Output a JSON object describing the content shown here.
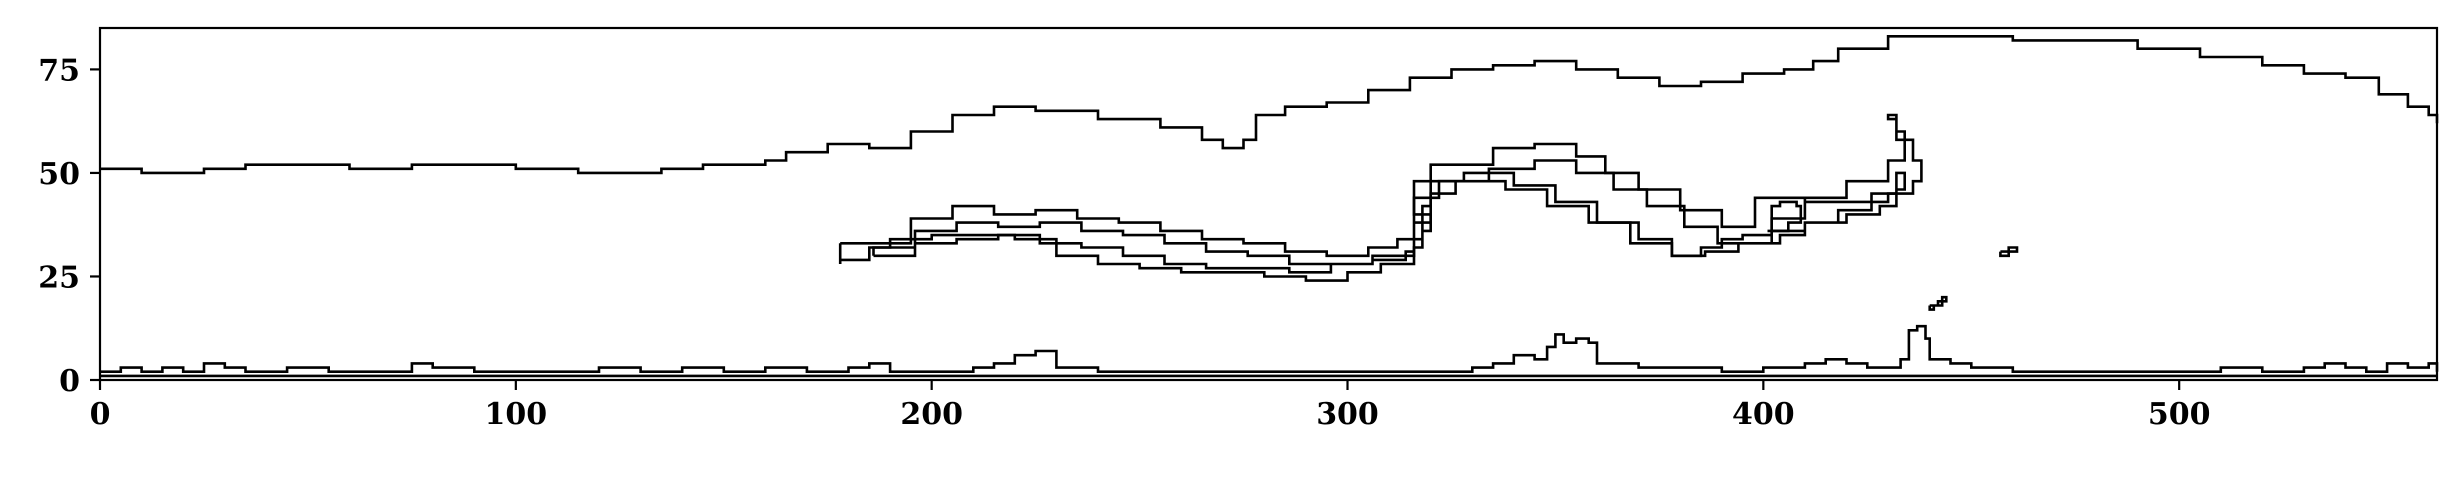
{
  "chart_data": {
    "type": "contour",
    "title": "",
    "xlabel": "",
    "ylabel": "",
    "xlim": [
      0,
      562
    ],
    "ylim": [
      0,
      85
    ],
    "x_ticks": [
      0,
      100,
      200,
      300,
      400,
      500
    ],
    "y_ticks": [
      0,
      25,
      50,
      75
    ],
    "x_tick_labels": [
      "0",
      "100",
      "200",
      "300",
      "400",
      "500"
    ],
    "y_tick_labels": [
      "0",
      "25",
      "50",
      "75"
    ],
    "grid": false,
    "line_color": "#000000",
    "contours": [
      {
        "closed": false,
        "points": [
          [
            0,
            51
          ],
          [
            10,
            50
          ],
          [
            25,
            51
          ],
          [
            35,
            52
          ],
          [
            45,
            52
          ],
          [
            60,
            51
          ],
          [
            75,
            52
          ],
          [
            90,
            52
          ],
          [
            100,
            51
          ],
          [
            115,
            50
          ],
          [
            125,
            50
          ],
          [
            135,
            51
          ],
          [
            145,
            52
          ],
          [
            155,
            52
          ],
          [
            160,
            53
          ],
          [
            165,
            55
          ],
          [
            175,
            57
          ],
          [
            185,
            56
          ],
          [
            195,
            60
          ],
          [
            205,
            64
          ],
          [
            215,
            66
          ],
          [
            225,
            65
          ],
          [
            240,
            63
          ],
          [
            255,
            61
          ],
          [
            265,
            58
          ],
          [
            270,
            56
          ],
          [
            275,
            58
          ],
          [
            278,
            64
          ],
          [
            285,
            66
          ],
          [
            295,
            67
          ],
          [
            305,
            70
          ],
          [
            315,
            73
          ],
          [
            325,
            75
          ],
          [
            335,
            76
          ],
          [
            345,
            77
          ],
          [
            355,
            75
          ],
          [
            365,
            73
          ],
          [
            375,
            71
          ],
          [
            385,
            72
          ],
          [
            395,
            74
          ],
          [
            405,
            75
          ],
          [
            412,
            77
          ],
          [
            418,
            80
          ],
          [
            430,
            83
          ],
          [
            445,
            83
          ],
          [
            460,
            82
          ],
          [
            475,
            82
          ],
          [
            490,
            80
          ],
          [
            505,
            78
          ],
          [
            520,
            76
          ],
          [
            530,
            74
          ],
          [
            540,
            73
          ],
          [
            548,
            69
          ],
          [
            555,
            66
          ],
          [
            560,
            64
          ],
          [
            562,
            62
          ]
        ]
      },
      {
        "closed": true,
        "points": [
          [
            178,
            33
          ],
          [
            188,
            33
          ],
          [
            195,
            39
          ],
          [
            205,
            42
          ],
          [
            215,
            40
          ],
          [
            225,
            41
          ],
          [
            235,
            39
          ],
          [
            245,
            38
          ],
          [
            255,
            36
          ],
          [
            265,
            34
          ],
          [
            275,
            33
          ],
          [
            285,
            31
          ],
          [
            295,
            30
          ],
          [
            305,
            32
          ],
          [
            312,
            34
          ],
          [
            318,
            36
          ],
          [
            320,
            40
          ],
          [
            316,
            48
          ],
          [
            320,
            52
          ],
          [
            335,
            56
          ],
          [
            345,
            57
          ],
          [
            355,
            54
          ],
          [
            362,
            50
          ],
          [
            370,
            46
          ],
          [
            380,
            41
          ],
          [
            390,
            37
          ],
          [
            398,
            38
          ],
          [
            398,
            44
          ],
          [
            410,
            43
          ],
          [
            420,
            43
          ],
          [
            430,
            45
          ],
          [
            436,
            48
          ],
          [
            438,
            53
          ],
          [
            436,
            58
          ],
          [
            432,
            63
          ],
          [
            430,
            64
          ],
          [
            432,
            60
          ],
          [
            434,
            53
          ],
          [
            430,
            48
          ],
          [
            420,
            44
          ],
          [
            410,
            39
          ],
          [
            402,
            35
          ],
          [
            395,
            34
          ],
          [
            390,
            32
          ],
          [
            385,
            30
          ],
          [
            378,
            34
          ],
          [
            370,
            38
          ],
          [
            360,
            43
          ],
          [
            350,
            47
          ],
          [
            340,
            50
          ],
          [
            328,
            48
          ],
          [
            320,
            42
          ],
          [
            318,
            32
          ],
          [
            316,
            28
          ],
          [
            308,
            26
          ],
          [
            300,
            24
          ],
          [
            290,
            25
          ],
          [
            280,
            26
          ],
          [
            270,
            26
          ],
          [
            260,
            27
          ],
          [
            250,
            28
          ],
          [
            240,
            30
          ],
          [
            230,
            34
          ],
          [
            220,
            35
          ],
          [
            210,
            35
          ],
          [
            200,
            34
          ],
          [
            190,
            32
          ],
          [
            185,
            29
          ],
          [
            178,
            28
          ],
          [
            178,
            33
          ]
        ]
      },
      {
        "closed": true,
        "points": [
          [
            186,
            30
          ],
          [
            196,
            36
          ],
          [
            206,
            38
          ],
          [
            216,
            37
          ],
          [
            226,
            38
          ],
          [
            236,
            36
          ],
          [
            246,
            35
          ],
          [
            256,
            33
          ],
          [
            266,
            31
          ],
          [
            276,
            30
          ],
          [
            286,
            28
          ],
          [
            296,
            28
          ],
          [
            306,
            29
          ],
          [
            314,
            31
          ],
          [
            316,
            36
          ],
          [
            316,
            44
          ],
          [
            322,
            48
          ],
          [
            334,
            51
          ],
          [
            345,
            53
          ],
          [
            355,
            50
          ],
          [
            364,
            46
          ],
          [
            372,
            42
          ],
          [
            381,
            37
          ],
          [
            389,
            33
          ],
          [
            398,
            33
          ],
          [
            404,
            35
          ],
          [
            410,
            38
          ],
          [
            420,
            40
          ],
          [
            428,
            42
          ],
          [
            432,
            46
          ],
          [
            434,
            50
          ],
          [
            432,
            45
          ],
          [
            426,
            41
          ],
          [
            418,
            38
          ],
          [
            410,
            36
          ],
          [
            402,
            33
          ],
          [
            394,
            31
          ],
          [
            386,
            30
          ],
          [
            378,
            33
          ],
          [
            368,
            38
          ],
          [
            358,
            42
          ],
          [
            348,
            46
          ],
          [
            338,
            48
          ],
          [
            326,
            45
          ],
          [
            320,
            38
          ],
          [
            316,
            30
          ],
          [
            306,
            28
          ],
          [
            296,
            26
          ],
          [
            286,
            27
          ],
          [
            276,
            27
          ],
          [
            266,
            28
          ],
          [
            256,
            30
          ],
          [
            246,
            32
          ],
          [
            236,
            33
          ],
          [
            226,
            35
          ],
          [
            216,
            34
          ],
          [
            206,
            33
          ],
          [
            196,
            32
          ],
          [
            186,
            30
          ]
        ]
      },
      {
        "closed": true,
        "points": [
          [
            401,
            36
          ],
          [
            402,
            42
          ],
          [
            404,
            43
          ],
          [
            408,
            42
          ],
          [
            409,
            38
          ],
          [
            406,
            36
          ],
          [
            401,
            36
          ]
        ]
      },
      {
        "closed": true,
        "points": [
          [
            457,
            31
          ],
          [
            459,
            32
          ],
          [
            461,
            31
          ],
          [
            459,
            30
          ],
          [
            457,
            31
          ]
        ]
      },
      {
        "closed": true,
        "points": [
          [
            440,
            18
          ],
          [
            442,
            19
          ],
          [
            444,
            20
          ],
          [
            443,
            18
          ],
          [
            441,
            17
          ],
          [
            440,
            18
          ]
        ]
      },
      {
        "closed": false,
        "points": [
          [
            0,
            2
          ],
          [
            5,
            3
          ],
          [
            10,
            2
          ],
          [
            15,
            3
          ],
          [
            20,
            2
          ],
          [
            25,
            4
          ],
          [
            30,
            3
          ],
          [
            35,
            2
          ],
          [
            45,
            3
          ],
          [
            55,
            2
          ],
          [
            70,
            2
          ],
          [
            75,
            4
          ],
          [
            80,
            3
          ],
          [
            90,
            2
          ],
          [
            100,
            2
          ],
          [
            110,
            2
          ],
          [
            120,
            3
          ],
          [
            130,
            2
          ],
          [
            140,
            3
          ],
          [
            150,
            2
          ],
          [
            160,
            3
          ],
          [
            170,
            2
          ],
          [
            180,
            3
          ],
          [
            185,
            4
          ],
          [
            190,
            2
          ],
          [
            200,
            2
          ],
          [
            210,
            3
          ],
          [
            215,
            4
          ],
          [
            220,
            6
          ],
          [
            225,
            7
          ],
          [
            230,
            3
          ],
          [
            240,
            2
          ],
          [
            250,
            2
          ],
          [
            260,
            2
          ],
          [
            270,
            2
          ],
          [
            280,
            2
          ],
          [
            290,
            2
          ],
          [
            300,
            2
          ],
          [
            310,
            2
          ],
          [
            320,
            2
          ],
          [
            330,
            3
          ],
          [
            335,
            4
          ],
          [
            340,
            6
          ],
          [
            345,
            5
          ],
          [
            348,
            8
          ],
          [
            350,
            11
          ],
          [
            352,
            9
          ],
          [
            355,
            10
          ],
          [
            358,
            9
          ],
          [
            360,
            4
          ],
          [
            370,
            3
          ],
          [
            380,
            3
          ],
          [
            390,
            2
          ],
          [
            400,
            3
          ],
          [
            410,
            4
          ],
          [
            415,
            5
          ],
          [
            420,
            4
          ],
          [
            425,
            3
          ],
          [
            430,
            3
          ],
          [
            433,
            5
          ],
          [
            435,
            12
          ],
          [
            437,
            13
          ],
          [
            439,
            10
          ],
          [
            440,
            5
          ],
          [
            445,
            4
          ],
          [
            450,
            3
          ],
          [
            460,
            2
          ],
          [
            470,
            2
          ],
          [
            480,
            2
          ],
          [
            490,
            2
          ],
          [
            500,
            2
          ],
          [
            510,
            3
          ],
          [
            520,
            2
          ],
          [
            530,
            3
          ],
          [
            535,
            4
          ],
          [
            540,
            3
          ],
          [
            545,
            2
          ],
          [
            550,
            4
          ],
          [
            555,
            3
          ],
          [
            560,
            4
          ],
          [
            562,
            2
          ]
        ]
      },
      {
        "closed": false,
        "points": [
          [
            0,
            1
          ],
          [
            50,
            1
          ],
          [
            100,
            1
          ],
          [
            150,
            1
          ],
          [
            200,
            1
          ],
          [
            250,
            1
          ],
          [
            300,
            1
          ],
          [
            350,
            1
          ],
          [
            400,
            1
          ],
          [
            450,
            1
          ],
          [
            500,
            1
          ],
          [
            562,
            1
          ]
        ]
      }
    ]
  }
}
